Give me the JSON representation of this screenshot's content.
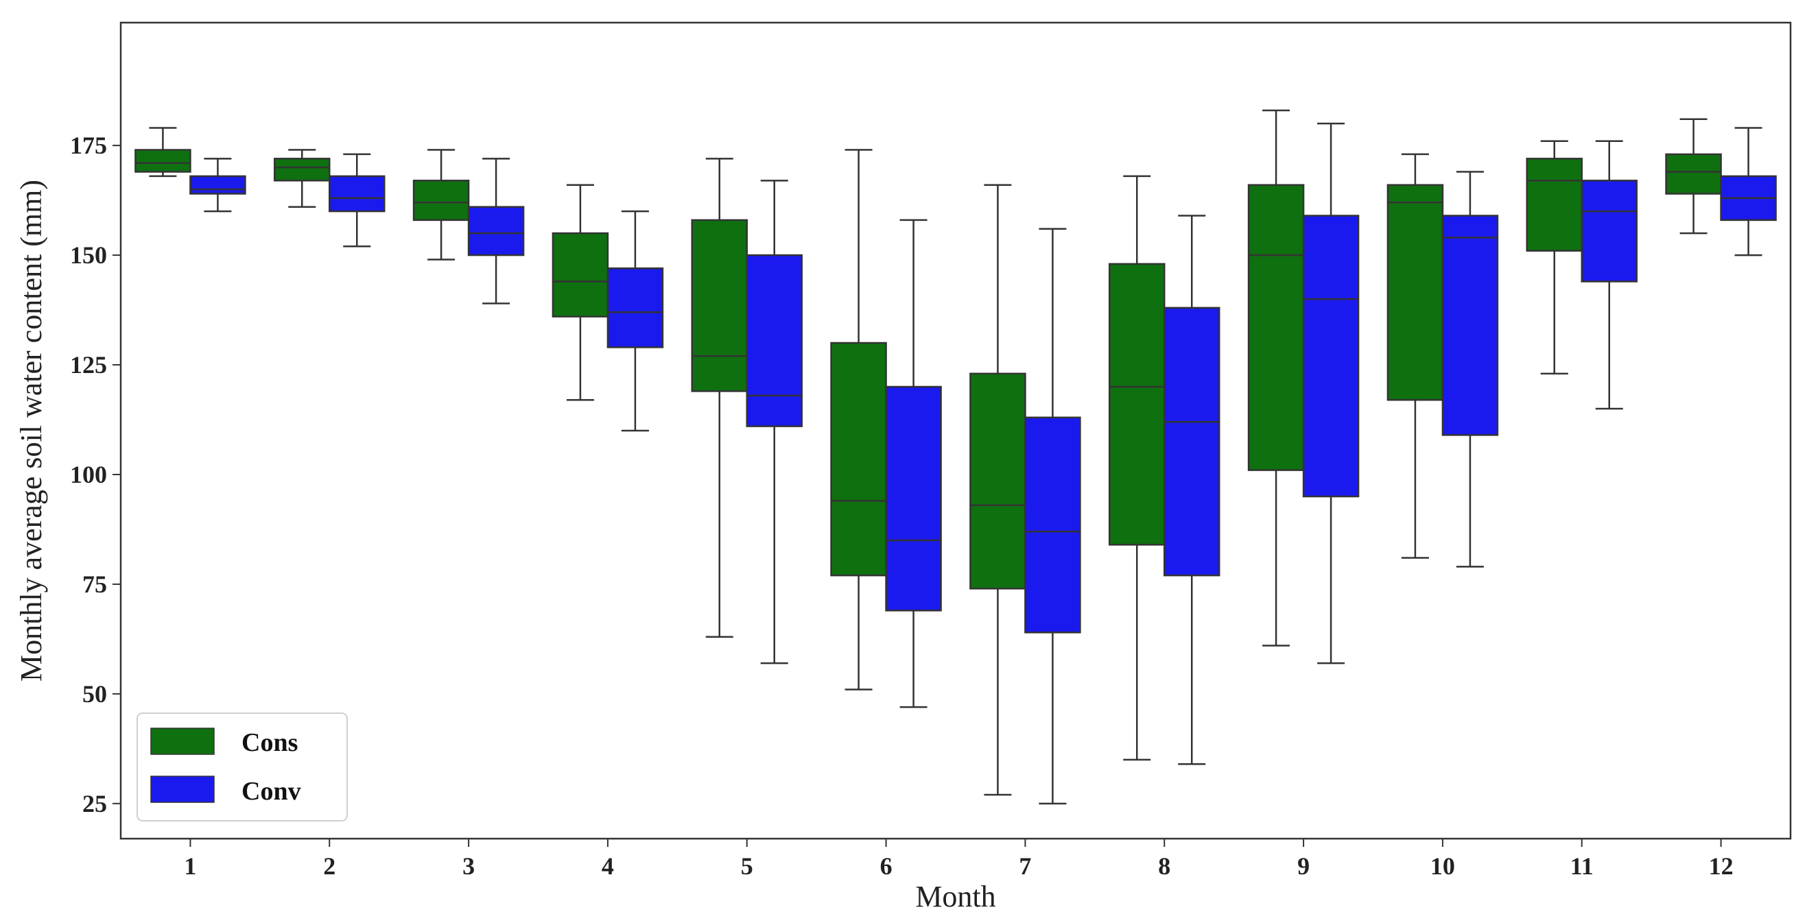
{
  "chart_data": {
    "type": "box",
    "xlabel": "Month",
    "ylabel": "Monthly average soil water content (mm)",
    "categories": [
      "1",
      "2",
      "3",
      "4",
      "5",
      "6",
      "7",
      "8",
      "9",
      "10",
      "11",
      "12"
    ],
    "ylim": [
      17,
      203
    ],
    "yticks": [
      25,
      50,
      75,
      100,
      125,
      150,
      175
    ],
    "grid": false,
    "legend_position": "bottom-left",
    "series": [
      {
        "name": "Cons",
        "color": "#0f7010",
        "boxes": [
          {
            "whislo": 168,
            "q1": 169,
            "med": 171,
            "q3": 174,
            "whishi": 179
          },
          {
            "whislo": 161,
            "q1": 167,
            "med": 170,
            "q3": 172,
            "whishi": 174
          },
          {
            "whislo": 149,
            "q1": 158,
            "med": 162,
            "q3": 167,
            "whishi": 174
          },
          {
            "whislo": 117,
            "q1": 136,
            "med": 144,
            "q3": 155,
            "whishi": 166
          },
          {
            "whislo": 63,
            "q1": 119,
            "med": 127,
            "q3": 158,
            "whishi": 172
          },
          {
            "whislo": 51,
            "q1": 77,
            "med": 94,
            "q3": 130,
            "whishi": 174
          },
          {
            "whislo": 27,
            "q1": 74,
            "med": 93,
            "q3": 123,
            "whishi": 166
          },
          {
            "whislo": 35,
            "q1": 84,
            "med": 120,
            "q3": 148,
            "whishi": 168
          },
          {
            "whislo": 61,
            "q1": 101,
            "med": 150,
            "q3": 166,
            "whishi": 183
          },
          {
            "whislo": 81,
            "q1": 117,
            "med": 162,
            "q3": 166,
            "whishi": 173
          },
          {
            "whislo": 123,
            "q1": 151,
            "med": 167,
            "q3": 172,
            "whishi": 176
          },
          {
            "whislo": 155,
            "q1": 164,
            "med": 169,
            "q3": 173,
            "whishi": 181
          }
        ]
      },
      {
        "name": "Conv",
        "color": "#1a1aee",
        "boxes": [
          {
            "whislo": 160,
            "q1": 164,
            "med": 165,
            "q3": 168,
            "whishi": 172
          },
          {
            "whislo": 152,
            "q1": 160,
            "med": 163,
            "q3": 168,
            "whishi": 173
          },
          {
            "whislo": 139,
            "q1": 150,
            "med": 155,
            "q3": 161,
            "whishi": 172
          },
          {
            "whislo": 110,
            "q1": 129,
            "med": 137,
            "q3": 147,
            "whishi": 160
          },
          {
            "whislo": 57,
            "q1": 111,
            "med": 118,
            "q3": 150,
            "whishi": 167
          },
          {
            "whislo": 47,
            "q1": 69,
            "med": 85,
            "q3": 120,
            "whishi": 158
          },
          {
            "whislo": 25,
            "q1": 64,
            "med": 87,
            "q3": 113,
            "whishi": 156
          },
          {
            "whislo": 34,
            "q1": 77,
            "med": 112,
            "q3": 138,
            "whishi": 159
          },
          {
            "whislo": 57,
            "q1": 95,
            "med": 140,
            "q3": 159,
            "whishi": 180
          },
          {
            "whislo": 79,
            "q1": 109,
            "med": 154,
            "q3": 159,
            "whishi": 169
          },
          {
            "whislo": 115,
            "q1": 144,
            "med": 160,
            "q3": 167,
            "whishi": 176
          },
          {
            "whislo": 150,
            "q1": 158,
            "med": 163,
            "q3": 168,
            "whishi": 179
          }
        ]
      }
    ]
  }
}
